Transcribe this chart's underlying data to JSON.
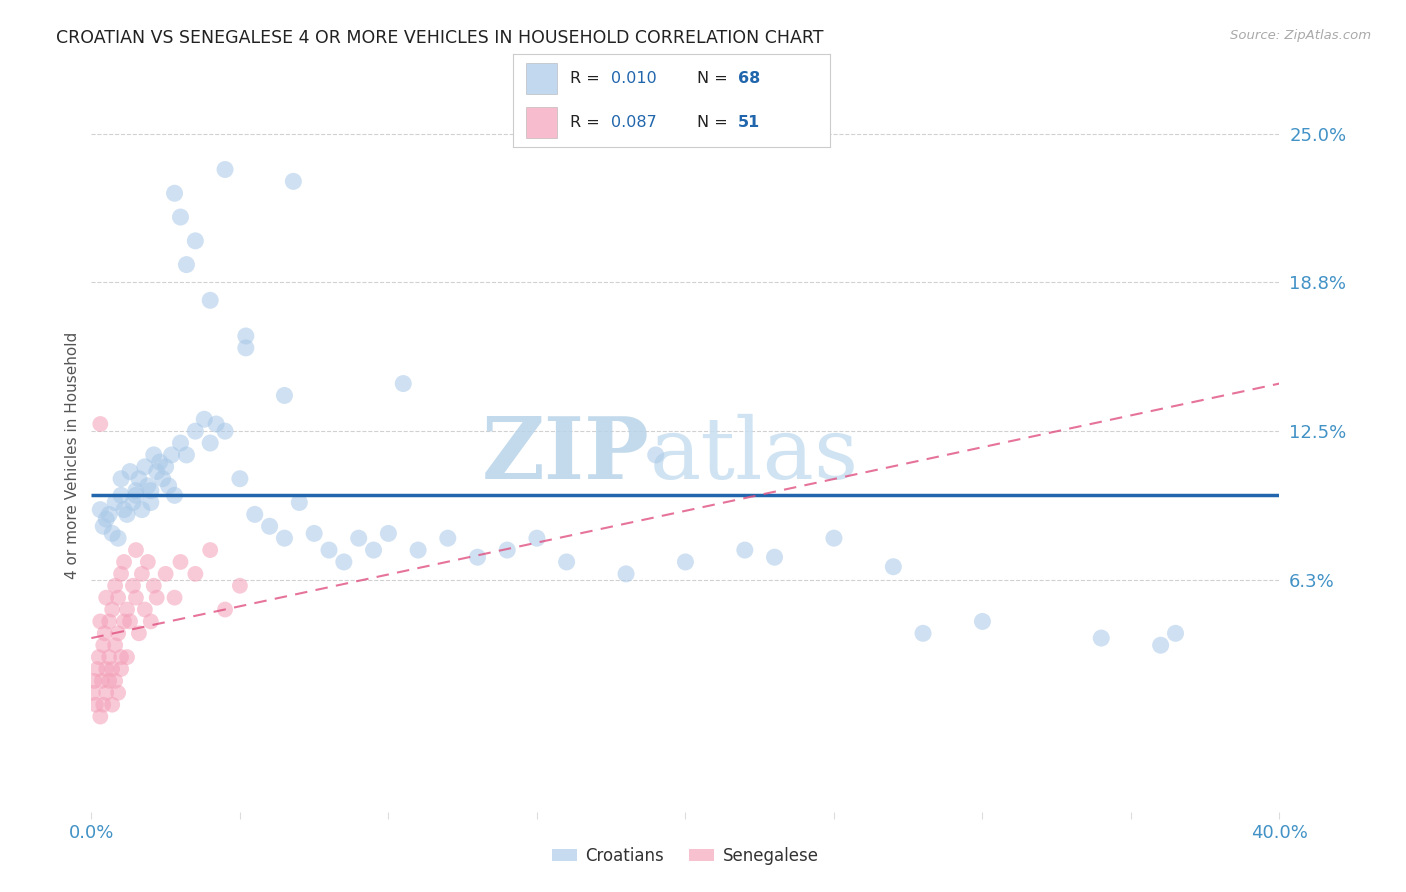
{
  "title": "CROATIAN VS SENEGALESE 4 OR MORE VEHICLES IN HOUSEHOLD CORRELATION CHART",
  "source": "Source: ZipAtlas.com",
  "ylabel": "4 or more Vehicles in Household",
  "watermark_zip": "ZIP",
  "watermark_atlas": "atlas",
  "xmin": 0.0,
  "xmax": 40.0,
  "ymin": -3.5,
  "ymax": 26.5,
  "ytick_positions": [
    6.25,
    12.5,
    18.75,
    25.0
  ],
  "ytick_labels": [
    "6.3%",
    "12.5%",
    "18.8%",
    "25.0%"
  ],
  "blue_label": "Croatians",
  "pink_label": "Senegalese",
  "blue_R": "0.010",
  "blue_N": "68",
  "pink_R": "0.087",
  "pink_N": "51",
  "blue_dot_color": "#a8c8e8",
  "pink_dot_color": "#f4a0b8",
  "blue_line_color": "#2166ac",
  "pink_line_color": "#e05080",
  "title_color": "#222222",
  "right_tick_color": "#4292c6",
  "bottom_tick_color": "#4292c6",
  "background_color": "#ffffff",
  "grid_color": "#cccccc",
  "watermark_color_zip": "#b8d4e8",
  "watermark_color_atlas": "#c8dff0",
  "legend_text_color": "#222222",
  "legend_number_color": "#2166ac",
  "croatian_x": [
    0.3,
    0.4,
    0.5,
    0.6,
    0.7,
    0.8,
    0.9,
    1.0,
    1.0,
    1.1,
    1.2,
    1.3,
    1.4,
    1.5,
    1.5,
    1.6,
    1.7,
    1.8,
    1.9,
    2.0,
    2.0,
    2.1,
    2.2,
    2.3,
    2.4,
    2.5,
    2.6,
    2.7,
    2.8,
    3.0,
    3.2,
    3.5,
    3.8,
    4.0,
    4.2,
    4.5,
    5.0,
    5.5,
    6.0,
    6.5,
    7.0,
    7.5,
    8.0,
    8.5,
    9.0,
    9.5,
    10.0,
    11.0,
    12.0,
    13.0,
    14.0,
    15.0,
    16.0,
    18.0,
    20.0,
    22.0,
    23.0,
    25.0,
    27.0,
    30.0,
    34.0,
    36.0,
    2.8,
    3.0,
    3.2,
    4.0,
    5.2,
    6.5
  ],
  "croatian_y": [
    9.2,
    8.5,
    8.8,
    9.0,
    8.2,
    9.5,
    8.0,
    9.8,
    10.5,
    9.2,
    9.0,
    10.8,
    9.5,
    10.0,
    9.8,
    10.5,
    9.2,
    11.0,
    10.2,
    9.5,
    10.0,
    11.5,
    10.8,
    11.2,
    10.5,
    11.0,
    10.2,
    11.5,
    9.8,
    12.0,
    11.5,
    12.5,
    13.0,
    12.0,
    12.8,
    12.5,
    10.5,
    9.0,
    8.5,
    8.0,
    9.5,
    8.2,
    7.5,
    7.0,
    8.0,
    7.5,
    8.2,
    7.5,
    8.0,
    7.2,
    7.5,
    8.0,
    7.0,
    6.5,
    7.0,
    7.5,
    7.2,
    8.0,
    6.8,
    4.5,
    3.8,
    3.5,
    22.5,
    21.5,
    19.5,
    18.0,
    16.0,
    14.0
  ],
  "croatian_x_outliers": [
    4.5,
    6.8,
    3.5,
    5.2,
    10.5,
    19.0,
    28.0,
    36.5
  ],
  "croatian_y_outliers": [
    23.5,
    23.0,
    20.5,
    16.5,
    14.5,
    11.5,
    4.0,
    4.0
  ],
  "senegalese_x": [
    0.05,
    0.1,
    0.15,
    0.2,
    0.25,
    0.3,
    0.35,
    0.4,
    0.45,
    0.5,
    0.5,
    0.6,
    0.6,
    0.7,
    0.7,
    0.8,
    0.8,
    0.9,
    0.9,
    1.0,
    1.0,
    1.1,
    1.1,
    1.2,
    1.3,
    1.4,
    1.5,
    1.5,
    1.6,
    1.7,
    1.8,
    1.9,
    2.0,
    2.1,
    2.2,
    2.5,
    2.8,
    3.0,
    3.5,
    4.0,
    4.5,
    5.0,
    0.3,
    0.4,
    0.5,
    0.6,
    0.7,
    0.8,
    0.9,
    1.0,
    1.2
  ],
  "senegalese_y": [
    1.5,
    2.0,
    1.0,
    2.5,
    3.0,
    4.5,
    2.0,
    3.5,
    4.0,
    2.5,
    5.5,
    3.0,
    4.5,
    2.5,
    5.0,
    3.5,
    6.0,
    4.0,
    5.5,
    3.0,
    6.5,
    4.5,
    7.0,
    5.0,
    4.5,
    6.0,
    5.5,
    7.5,
    4.0,
    6.5,
    5.0,
    7.0,
    4.5,
    6.0,
    5.5,
    6.5,
    5.5,
    7.0,
    6.5,
    7.5,
    5.0,
    6.0,
    0.5,
    1.0,
    1.5,
    2.0,
    1.0,
    2.0,
    1.5,
    2.5,
    3.0
  ],
  "senegalese_x_outliers": [
    0.3
  ],
  "senegalese_y_outliers": [
    12.8
  ],
  "cro_trend_x0": 0.0,
  "cro_trend_x1": 40.0,
  "cro_trend_y0": 9.8,
  "cro_trend_y1": 9.8,
  "sen_trend_x0": 0.0,
  "sen_trend_x1": 40.0,
  "sen_trend_y0": 3.8,
  "sen_trend_y1": 14.5
}
